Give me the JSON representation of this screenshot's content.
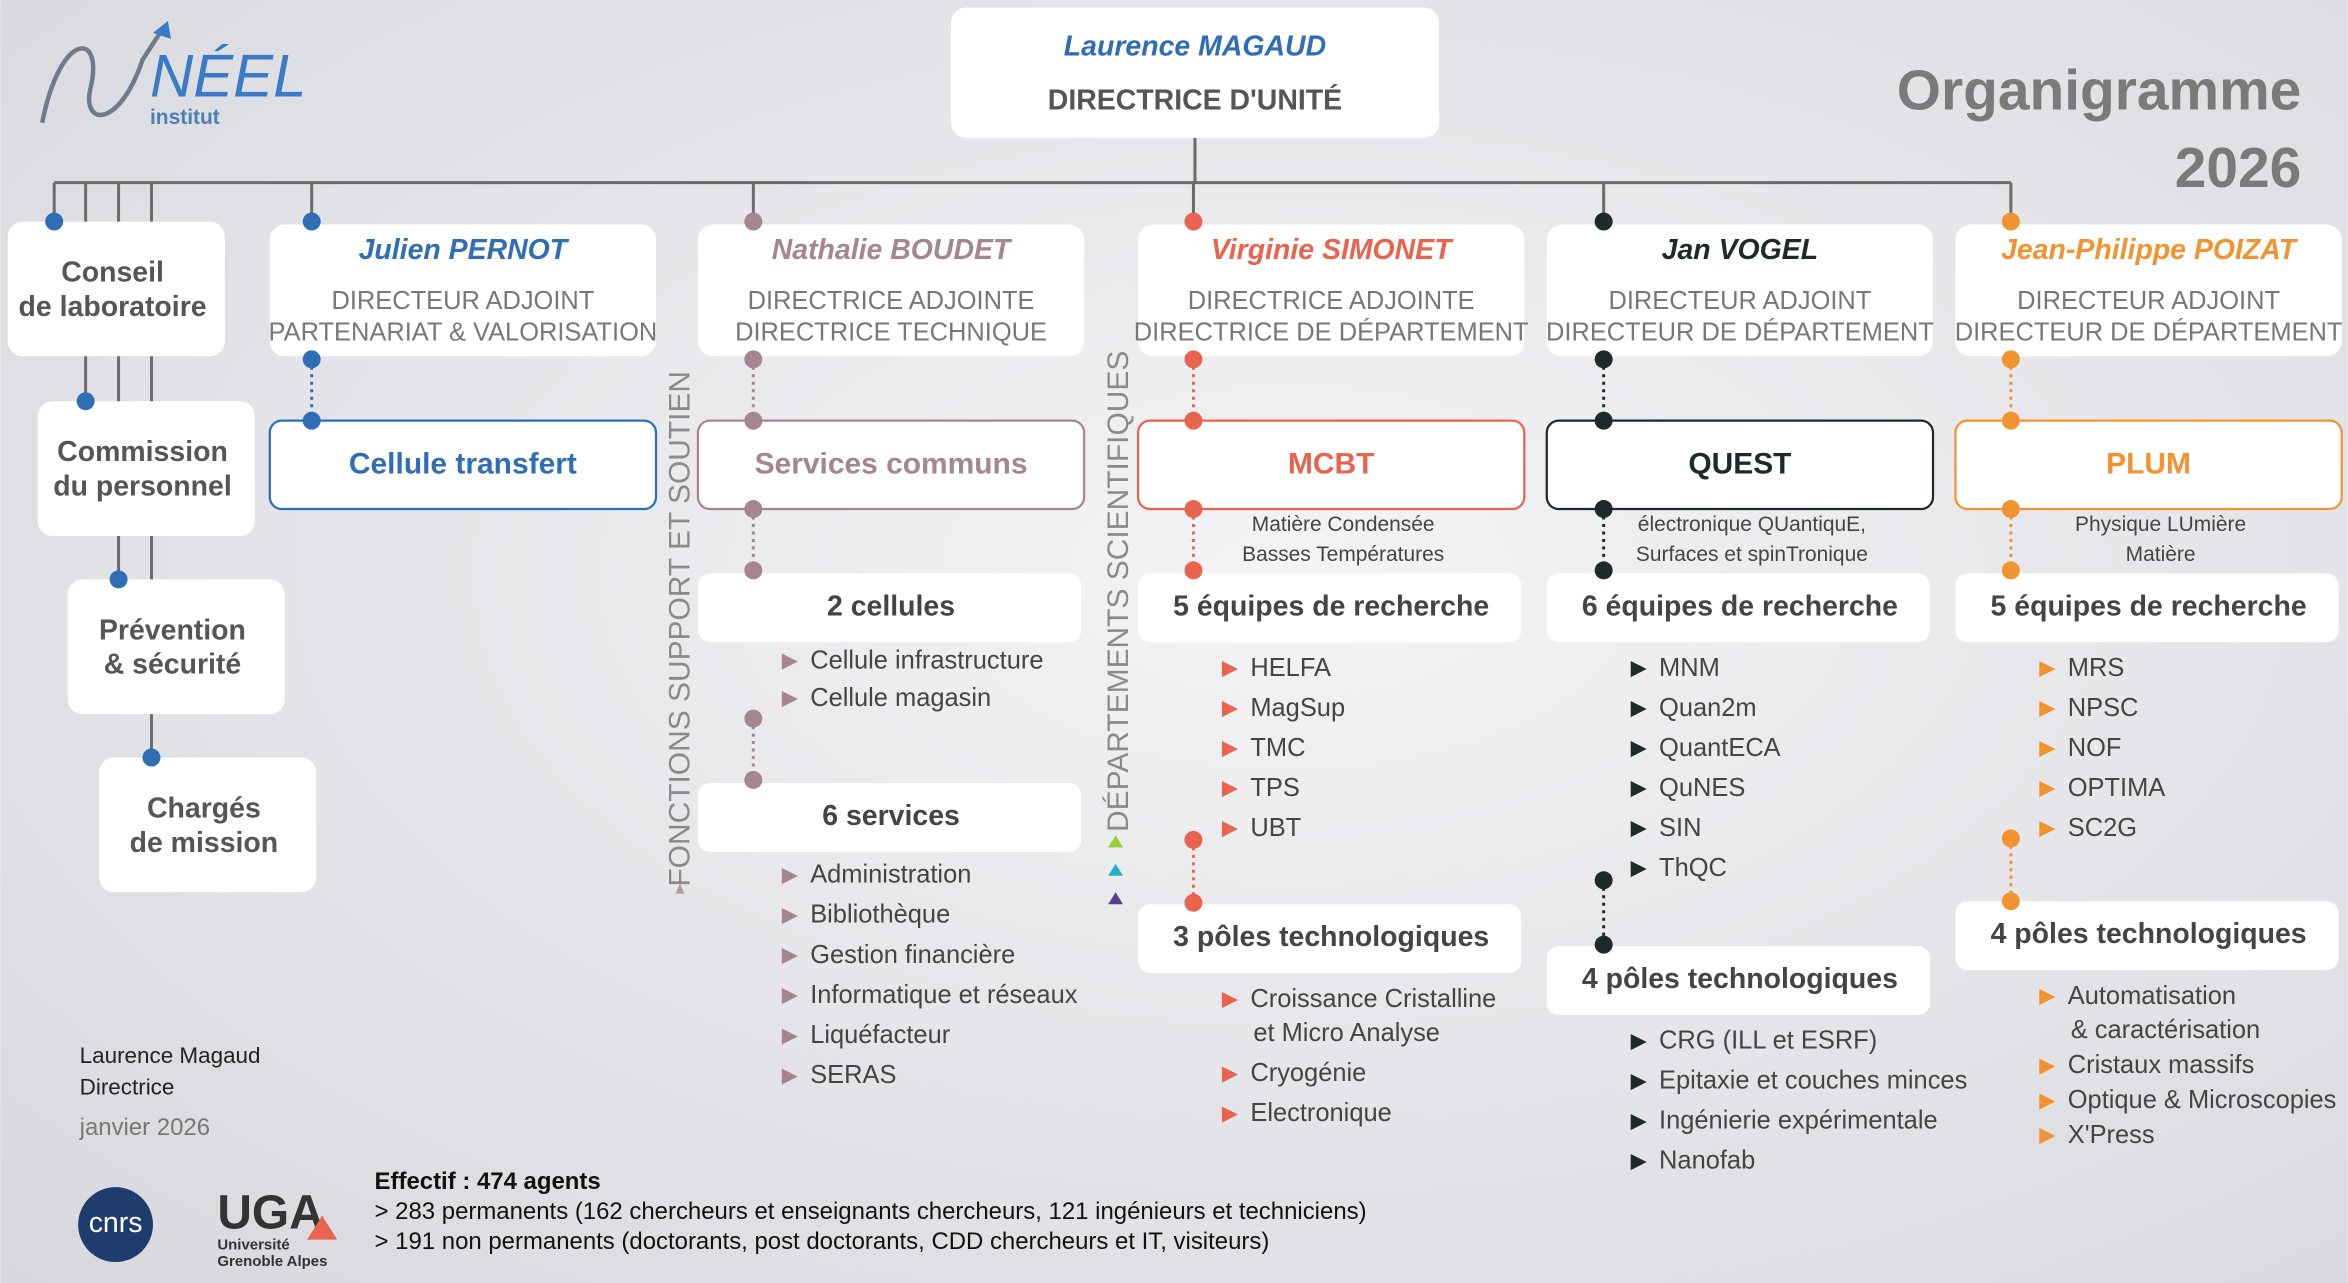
{
  "logo": {
    "name": "NÉEL",
    "sub": "institut"
  },
  "title": [
    "Organigramme",
    "2026"
  ],
  "director": {
    "name": "Laurence MAGAUD",
    "role": "DIRECTRICE D'UNITÉ"
  },
  "councils": [
    [
      "Conseil",
      "de laboratoire"
    ],
    [
      "Commission",
      "du personnel"
    ],
    [
      "Prévention",
      "& sécurité"
    ],
    [
      "Chargés",
      "de mission"
    ]
  ],
  "side_labels": [
    "FONCTIONS SUPPORT ET SOUTIEN",
    "DÉPARTEMENTS SCIENTIFIQUES"
  ],
  "columns": [
    {
      "name": "Julien PERNOT",
      "role": [
        "DIRECTEUR ADJOINT",
        "PARTENARIAT & VALORISATION"
      ],
      "unit": "Cellule transfert"
    },
    {
      "name": "Nathalie BOUDET",
      "role": [
        "DIRECTRICE ADJOINTE",
        "DIRECTRICE TECHNIQUE"
      ],
      "unit": "Services communs",
      "groups": [
        {
          "title": "2 cellules",
          "items": [
            "Cellule infrastructure",
            "Cellule magasin"
          ]
        },
        {
          "title": "6 services",
          "items": [
            "Administration",
            "Bibliothèque",
            "Gestion financière",
            "Informatique et réseaux",
            "Liquéfacteur",
            "SERAS"
          ]
        }
      ]
    },
    {
      "name": "Virginie SIMONET",
      "role": [
        "DIRECTRICE ADJOINTE",
        "DIRECTRICE DE DÉPARTEMENT"
      ],
      "unit": "MCBT",
      "unit_subtitle": [
        "Matière Condensée",
        "Basses Températures"
      ],
      "groups": [
        {
          "title": "5 équipes de recherche",
          "items": [
            "HELFA",
            "MagSup",
            "TMC",
            "TPS",
            "UBT"
          ]
        },
        {
          "title": "3 pôles technologiques",
          "items": [
            [
              "Croissance Cristalline",
              "et Micro Analyse"
            ],
            "Cryogénie",
            "Electronique"
          ]
        }
      ]
    },
    {
      "name": "Jan VOGEL",
      "role": [
        "DIRECTEUR ADJOINT",
        "DIRECTEUR DE DÉPARTEMENT"
      ],
      "unit": "QUEST",
      "unit_subtitle": [
        "électronique QUantiquE,",
        "Surfaces et spinTronique"
      ],
      "groups": [
        {
          "title": "6 équipes de recherche",
          "items": [
            "MNM",
            "Quan2m",
            "QuantECA",
            "QuNES",
            "SIN",
            "ThQC"
          ]
        },
        {
          "title": "4 pôles technologiques",
          "items": [
            "CRG (ILL et ESRF)",
            "Epitaxie et couches minces",
            "Ingénierie expérimentale",
            "Nanofab"
          ]
        }
      ]
    },
    {
      "name": "Jean-Philippe POIZAT",
      "role": [
        "DIRECTEUR ADJOINT",
        "DIRECTEUR DE DÉPARTEMENT"
      ],
      "unit": "PLUM",
      "unit_subtitle": [
        "Physique LUmière",
        "Matière"
      ],
      "groups": [
        {
          "title": "5 équipes de recherche",
          "items": [
            "MRS",
            "NPSC",
            "NOF",
            "OPTIMA",
            "SC2G"
          ]
        },
        {
          "title": "4 pôles technologiques",
          "items": [
            [
              "Automatisation",
              "& caractérisation"
            ],
            "Cristaux massifs",
            "Optique & Microscopies",
            "X'Press"
          ]
        }
      ]
    }
  ],
  "signature": {
    "lines": [
      "Laurence Magaud",
      "Directrice"
    ],
    "date": "janvier 2026"
  },
  "staff": {
    "title": "Effectif : 474 agents",
    "lines": [
      "> 283 permanents (162 chercheurs et enseignants chercheurs, 121 ingénieurs et techniciens)",
      "> 191 non permanents (doctorants, post doctorants, CDD chercheurs et IT, visiteurs)"
    ]
  },
  "partners": {
    "cnrs": "cnrs",
    "uga": "UGA",
    "uga_sub": [
      "Université",
      "Grenoble Alpes"
    ]
  }
}
